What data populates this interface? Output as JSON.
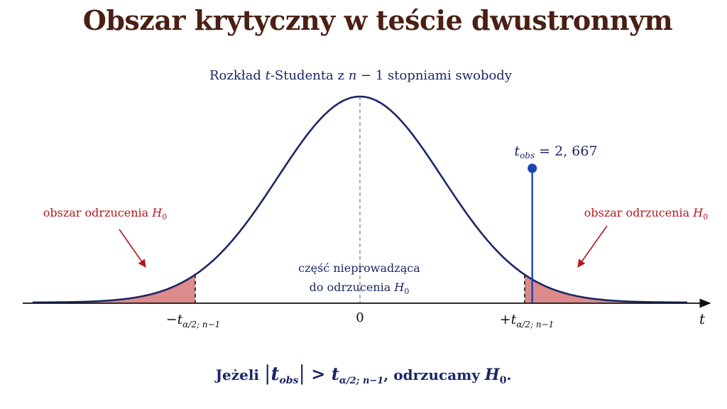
{
  "title": "Obszar krytyczny w teście dwustronnym",
  "subtitle": "Rozkład t-Studenta z n − 1  stopniami swobody",
  "left_region_label": "obszar odrzucenia H₀",
  "right_region_label": "obszar odrzucenia H₀",
  "center_label_line1": "część nieprowadząca",
  "center_label_line2": "do odrzucenia H₀",
  "t_obs_label": "t_obs = 2,667",
  "t_obs_value": 2.667,
  "critical_value": 2.0,
  "axis": {
    "var": "t",
    "zero": "0",
    "left_crit": "−t α/2; n−1",
    "right_crit": "+t α/2; n−1"
  },
  "conclusion": "Jeżeli |t_obs| > t α/2; n−1, odrzucamy H₀.",
  "colors": {
    "title": "#4a1f14",
    "curve": "#1c2766",
    "region_fill": "#dc8a8a",
    "region_label": "#b3181e",
    "t_obs": "#1b44b3"
  }
}
